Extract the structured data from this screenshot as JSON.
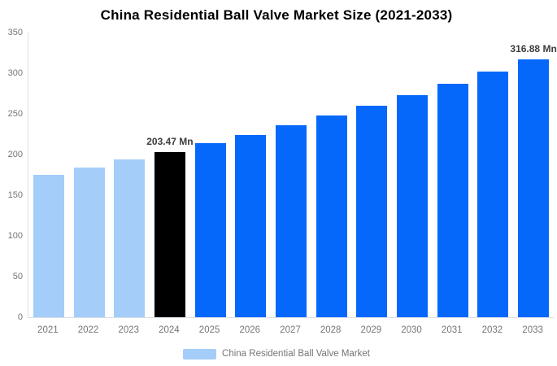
{
  "title": "China Residential Ball Valve Market Size (2021-2033)",
  "legend": {
    "label": "China Residential Ball Valve Market",
    "swatch_color": "#A4CDFA"
  },
  "colors": {
    "historical_bar": "#A4CDFA",
    "highlight_bar": "#000000",
    "forecast_bar": "#0568FB",
    "axis_line": "#D8DFE8",
    "tick_text": "#757575",
    "annotation_text": "#3D3D3D",
    "background": "#FFFFFF"
  },
  "chart_data": {
    "type": "bar",
    "title": "China Residential Ball Valve Market Size (2021-2033)",
    "xlabel": "",
    "ylabel": "",
    "unit": "Mn",
    "categories": [
      "2021",
      "2022",
      "2023",
      "2024",
      "2025",
      "2026",
      "2027",
      "2028",
      "2029",
      "2030",
      "2031",
      "2032",
      "2033"
    ],
    "values": [
      175.5,
      184.4,
      193.7,
      203.47,
      213.7,
      224.5,
      235.9,
      247.7,
      260.3,
      273.4,
      287.2,
      301.7,
      316.88
    ],
    "bar_colors": [
      "#A4CDFA",
      "#A4CDFA",
      "#A4CDFA",
      "#000000",
      "#0568FB",
      "#0568FB",
      "#0568FB",
      "#0568FB",
      "#0568FB",
      "#0568FB",
      "#0568FB",
      "#0568FB",
      "#0568FB"
    ],
    "annotations": [
      {
        "category": "2024",
        "text": "203.47 Mn"
      },
      {
        "category": "2033",
        "text": "316.88 Mn"
      }
    ],
    "ylim": [
      0,
      350
    ],
    "yticks": [
      0,
      50,
      100,
      150,
      200,
      250,
      300,
      350
    ],
    "grid": false,
    "legend_position": "bottom",
    "legend_entries": [
      "China Residential Ball Valve Market"
    ]
  }
}
